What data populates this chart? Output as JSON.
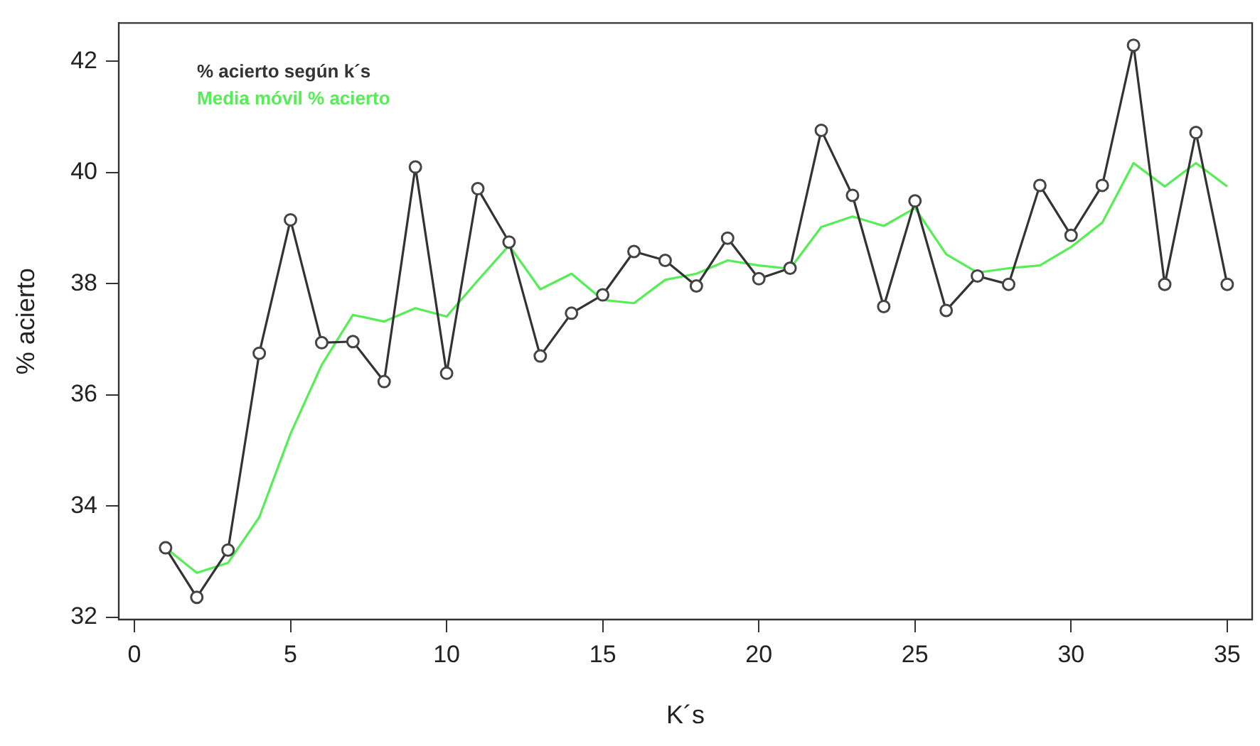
{
  "chart_data": {
    "type": "line",
    "xlabel": "K´s",
    "ylabel": "% acierto",
    "x": [
      1,
      2,
      3,
      4,
      5,
      6,
      7,
      8,
      9,
      10,
      11,
      12,
      13,
      14,
      15,
      16,
      17,
      18,
      19,
      20,
      21,
      22,
      23,
      24,
      25,
      26,
      27,
      28,
      29,
      30,
      31,
      32,
      33,
      34,
      35
    ],
    "series": [
      {
        "name": "% acierto según k´s",
        "color": "#333333",
        "marker": "circle",
        "values": [
          33.25,
          32.36,
          33.21,
          36.75,
          39.15,
          36.94,
          36.96,
          36.24,
          40.1,
          36.39,
          39.71,
          38.75,
          36.7,
          37.47,
          37.8,
          38.58,
          38.42,
          37.96,
          38.82,
          38.09,
          38.28,
          40.76,
          39.59,
          37.59,
          39.49,
          37.52,
          38.14,
          37.99,
          39.77,
          38.87,
          39.77,
          42.29,
          37.99,
          40.72,
          37.99
        ]
      },
      {
        "name": "Media móvil % acierto",
        "color": "#55ee55",
        "marker": "none",
        "values": [
          33.25,
          32.8,
          32.98,
          33.8,
          35.3,
          36.54,
          37.44,
          37.32,
          37.56,
          37.41,
          38.06,
          38.69,
          37.9,
          38.18,
          37.71,
          37.65,
          38.07,
          38.18,
          38.42,
          38.33,
          38.27,
          39.02,
          39.21,
          39.04,
          39.36,
          38.53,
          38.2,
          38.28,
          38.33,
          38.66,
          39.1,
          40.17,
          39.75,
          40.17,
          39.75
        ]
      }
    ],
    "xlim": [
      -0.5,
      35.8
    ],
    "xticks": [
      0,
      5,
      10,
      15,
      20,
      25,
      30,
      35
    ],
    "ylim": [
      31.96,
      42.69
    ],
    "yticks": [
      32,
      34,
      36,
      38,
      40,
      42
    ],
    "grid": false,
    "legend": "top left"
  }
}
